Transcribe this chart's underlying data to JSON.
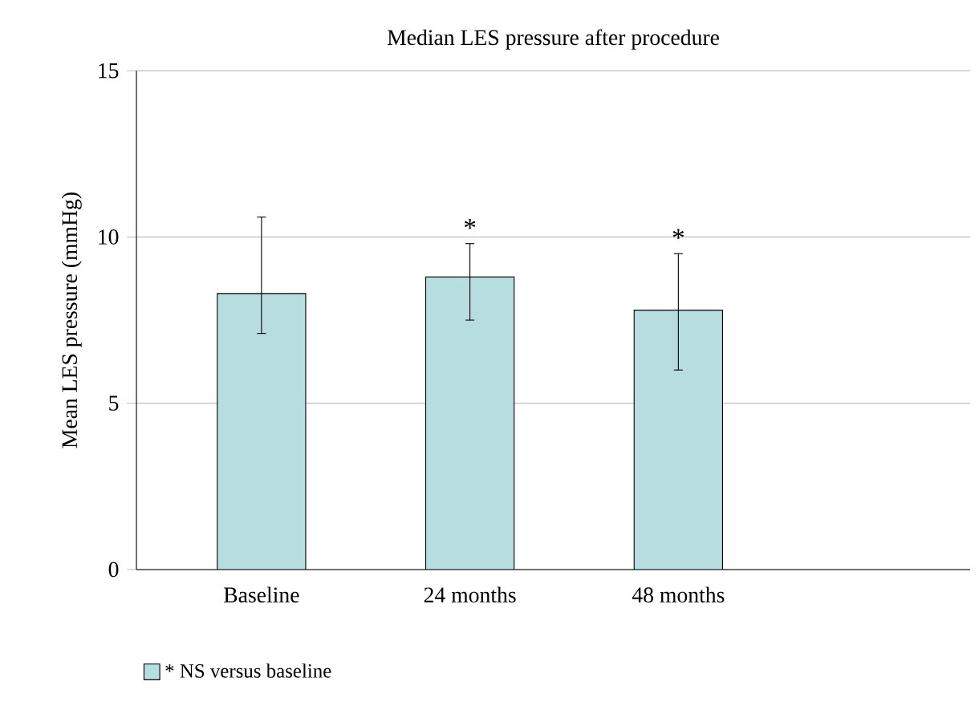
{
  "chart_data": {
    "type": "bar",
    "title": "Median LES pressure after procedure",
    "ylabel": "Mean LES pressure (mmHg)",
    "categories": [
      "Baseline",
      "24 months",
      "48 months"
    ],
    "series": [
      {
        "name": "* NS versus baseline",
        "color": "#b8dde0",
        "values": [
          8.3,
          8.8,
          7.8
        ],
        "errors": [
          [
            7.1,
            10.6
          ],
          [
            7.5,
            9.8
          ],
          [
            6.0,
            9.5
          ]
        ],
        "value_labels": [
          null,
          "*",
          "*"
        ]
      }
    ],
    "ylim": [
      0,
      15
    ],
    "yticks": [
      0,
      5,
      10,
      15
    ],
    "grid": "y",
    "legend": "bottom"
  }
}
